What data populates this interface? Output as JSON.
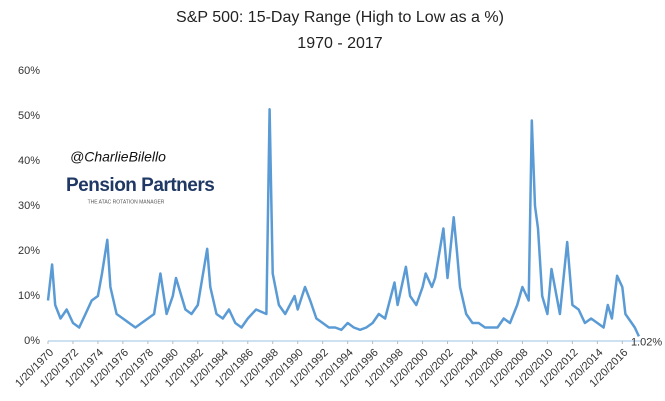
{
  "chart_data": {
    "type": "line",
    "title": "S&P 500: 15-Day Range (High to Low as a %)",
    "subtitle": "1970 - 2017",
    "watermark": "@CharlieBilello",
    "logo": "Pension Partners",
    "logo_tagline": "THE ATAC ROTATION MANAGER",
    "annotation": "1.02%",
    "color": "#5b9bd5",
    "grid": false,
    "ylim": [
      0,
      60
    ],
    "yticks": [
      {
        "value": 0,
        "label": "0%"
      },
      {
        "value": 10,
        "label": "10%"
      },
      {
        "value": 20,
        "label": "20%"
      },
      {
        "value": 30,
        "label": "30%"
      },
      {
        "value": 40,
        "label": "40%"
      },
      {
        "value": 50,
        "label": "50%"
      },
      {
        "value": 60,
        "label": "60%"
      }
    ],
    "xlim": [
      "1970-01-20",
      "2017-06-20"
    ],
    "xticks": [
      {
        "value": "1970-01-20",
        "label": "1/20/1970"
      },
      {
        "value": "1972-01-20",
        "label": "1/20/1972"
      },
      {
        "value": "1974-01-20",
        "label": "1/20/1974"
      },
      {
        "value": "1976-01-20",
        "label": "1/20/1976"
      },
      {
        "value": "1978-01-20",
        "label": "1/20/1978"
      },
      {
        "value": "1980-01-20",
        "label": "1/20/1980"
      },
      {
        "value": "1982-01-20",
        "label": "1/20/1982"
      },
      {
        "value": "1984-01-20",
        "label": "1/20/1984"
      },
      {
        "value": "1986-01-20",
        "label": "1/20/1986"
      },
      {
        "value": "1988-01-20",
        "label": "1/20/1988"
      },
      {
        "value": "1990-01-20",
        "label": "1/20/1990"
      },
      {
        "value": "1992-01-20",
        "label": "1/20/1992"
      },
      {
        "value": "1994-01-20",
        "label": "1/20/1994"
      },
      {
        "value": "1996-01-20",
        "label": "1/20/1996"
      },
      {
        "value": "1998-01-20",
        "label": "1/20/1998"
      },
      {
        "value": "2000-01-20",
        "label": "1/20/2000"
      },
      {
        "value": "2002-01-20",
        "label": "1/20/2002"
      },
      {
        "value": "2004-01-20",
        "label": "1/20/2004"
      },
      {
        "value": "2006-01-20",
        "label": "1/20/2006"
      },
      {
        "value": "2008-01-20",
        "label": "1/20/2008"
      },
      {
        "value": "2010-01-20",
        "label": "1/20/2010"
      },
      {
        "value": "2012-01-20",
        "label": "1/20/2012"
      },
      {
        "value": "2014-01-20",
        "label": "1/20/2014"
      },
      {
        "value": "2016-01-20",
        "label": "1/20/2016"
      }
    ],
    "x": [
      "1970-01-20",
      "1970-05-20",
      "1970-08-20",
      "1971-01-20",
      "1971-07-20",
      "1972-01-20",
      "1972-07-20",
      "1973-01-20",
      "1973-07-20",
      "1974-01-20",
      "1974-05-20",
      "1974-10-20",
      "1975-01-20",
      "1975-07-20",
      "1976-01-20",
      "1976-07-20",
      "1977-01-20",
      "1977-07-20",
      "1978-01-20",
      "1978-07-20",
      "1979-01-20",
      "1979-07-20",
      "1980-01-20",
      "1980-04-20",
      "1981-01-20",
      "1981-07-20",
      "1982-01-20",
      "1982-10-20",
      "1983-01-20",
      "1983-07-20",
      "1984-01-20",
      "1984-07-20",
      "1985-01-20",
      "1985-07-20",
      "1986-01-20",
      "1986-09-20",
      "1987-07-20",
      "1987-10-20",
      "1988-01-20",
      "1988-07-20",
      "1989-01-20",
      "1989-10-20",
      "1990-01-20",
      "1990-08-20",
      "1991-01-20",
      "1991-07-20",
      "1992-01-20",
      "1992-07-20",
      "1993-01-20",
      "1993-07-20",
      "1994-01-20",
      "1994-07-20",
      "1995-01-20",
      "1995-07-20",
      "1996-01-20",
      "1996-07-20",
      "1997-01-20",
      "1997-10-20",
      "1998-01-20",
      "1998-09-20",
      "1999-01-20",
      "1999-07-20",
      "2000-01-20",
      "2000-04-20",
      "2000-10-20",
      "2001-01-20",
      "2001-09-20",
      "2002-01-20",
      "2002-07-20",
      "2002-10-20",
      "2003-01-20",
      "2003-07-20",
      "2004-01-20",
      "2004-07-20",
      "2005-01-20",
      "2005-07-20",
      "2006-01-20",
      "2006-07-20",
      "2007-01-20",
      "2007-08-20",
      "2008-01-20",
      "2008-07-20",
      "2008-10-20",
      "2009-01-20",
      "2009-04-20",
      "2009-08-20",
      "2010-01-20",
      "2010-05-20",
      "2011-01-20",
      "2011-08-20",
      "2012-01-20",
      "2012-07-20",
      "2013-01-20",
      "2013-07-20",
      "2014-01-20",
      "2014-07-20",
      "2014-11-20",
      "2015-03-20",
      "2015-08-20",
      "2016-01-20",
      "2016-04-20",
      "2016-10-20",
      "2017-01-20",
      "2017-05-20"
    ],
    "values": [
      9,
      17,
      8,
      5,
      7,
      4,
      3,
      6,
      9,
      10,
      15,
      22.5,
      12,
      6,
      5,
      4,
      3,
      4,
      5,
      6,
      15,
      6,
      10,
      14,
      7,
      6,
      8,
      20.5,
      12,
      6,
      5,
      7,
      4,
      3,
      5,
      7,
      6,
      51.5,
      15,
      8,
      6,
      10,
      7,
      12,
      9,
      5,
      4,
      3,
      3,
      2.5,
      4,
      3,
      2.5,
      3,
      4,
      6,
      5,
      13,
      8,
      16.5,
      10,
      8,
      12,
      15,
      12,
      14,
      25,
      14,
      27.5,
      20,
      12,
      6,
      4,
      4,
      3,
      3,
      3,
      5,
      4,
      8,
      12,
      9,
      49,
      30,
      25,
      10,
      6,
      16,
      6,
      22,
      8,
      7,
      4,
      5,
      4,
      3,
      8,
      5,
      14.5,
      12,
      6,
      4,
      3,
      1.02
    ]
  }
}
